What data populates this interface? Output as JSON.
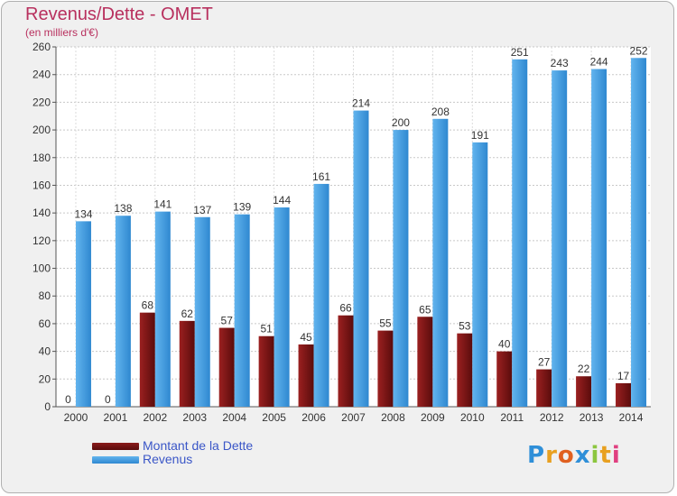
{
  "chart_data": {
    "type": "bar",
    "title": "Revenus/Dette - OMET",
    "subtitle": "(en milliers d'€)",
    "categories": [
      "2000",
      "2001",
      "2002",
      "2003",
      "2004",
      "2005",
      "2006",
      "2007",
      "2008",
      "2009",
      "2010",
      "2011",
      "2012",
      "2013",
      "2014"
    ],
    "series": [
      {
        "name": "Montant de la Dette",
        "color": "#7a1414",
        "values": [
          0,
          0,
          68,
          62,
          57,
          51,
          45,
          66,
          55,
          65,
          53,
          40,
          27,
          22,
          17
        ]
      },
      {
        "name": "Revenus",
        "color": "#3f9ce0",
        "values": [
          134,
          138,
          141,
          137,
          139,
          144,
          161,
          214,
          200,
          208,
          191,
          251,
          243,
          244,
          252
        ]
      }
    ],
    "ylim": [
      0,
      260
    ],
    "yticks": [
      0,
      20,
      40,
      60,
      80,
      100,
      120,
      140,
      160,
      180,
      200,
      220,
      240,
      260
    ],
    "grid": true,
    "legend_position": "bottom-left"
  },
  "logo": {
    "letters": [
      "P",
      "r",
      "o",
      "x",
      "i",
      "t",
      "i"
    ],
    "colors": [
      "#2f8fd8",
      "#e8a020",
      "#e06020",
      "#2f8fd8",
      "#8cc63f",
      "#e8a020",
      "#e04080"
    ]
  }
}
